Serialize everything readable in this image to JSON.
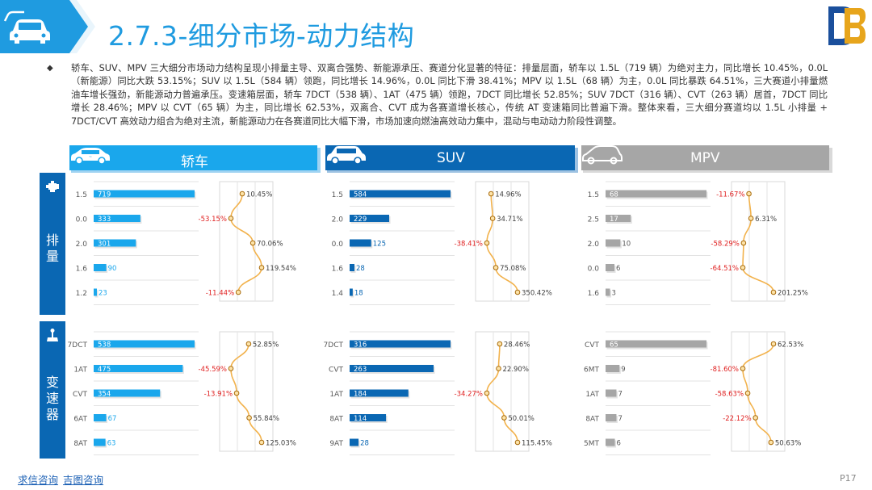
{
  "header": {
    "title": "2.7.3-细分市场-动力结构",
    "icon": "car-icon"
  },
  "summary": {
    "bullet": "◆",
    "text": "轿车、SUV、MPV 三大细分市场动力结构呈现小排量主导、双离合强势、新能源承压、赛道分化显著的特征：排量层面，轿车以 1.5L（719 辆）为绝对主力，同比增长 10.45%，0.0L（新能源）同比大跌 53.15%；SUV 以 1.5L（584 辆）领跑，同比增长 14.96%，0.0L 同比下滑 38.41%；MPV 以 1.5L（68 辆）为主，0.0L 同比暴跌 64.51%，三大赛道小排量燃油车增长强劲，新能源动力普遍承压。变速箱层面，轿车 7DCT（538 辆）、1AT（475 辆）领跑，7DCT 同比增长 52.85%；SUV 7DCT（316 辆）、CVT（263 辆）居首，7DCT 同比增长 28.46%；MPV 以 CVT（65 辆）为主，同比增长 62.53%，双离合、CVT 成为各赛道增长核心，传统 AT 变速箱同比普遍下滑。整体来看，三大细分赛道均以 1.5L 小排量 + 7DCT/CVT 高效动力组合为绝对主流，新能源动力在各赛道同比大幅下滑，市场加速向燃油高效动力集中，混动与电动动力阶段性调整。"
  },
  "columns": [
    {
      "label": "轿车",
      "color": "#1aa7ec",
      "icon": "sedan-icon"
    },
    {
      "label": "SUV",
      "color": "#0a67b3",
      "icon": "suv-icon"
    },
    {
      "label": "MPV",
      "color": "#a6a6a6",
      "icon": "mpv-icon"
    }
  ],
  "rows": [
    {
      "label": "排量",
      "icon": "engine-icon"
    },
    {
      "label": "变速器",
      "icon": "gear-shift-icon"
    }
  ],
  "footer": {
    "link1": "求信咨询",
    "link2": "吉图咨询",
    "page": "P17"
  },
  "chart_data": [
    {
      "type": "bar+line",
      "segment": "轿车",
      "dimension": "排量",
      "categories": [
        "1.5",
        "0.0",
        "2.0",
        "1.6",
        "1.2"
      ],
      "values": [
        719,
        333,
        301,
        90,
        23
      ],
      "growth": [
        10.45,
        -53.15,
        70.06,
        119.54,
        -11.44
      ],
      "growth_labels": [
        "10.45%",
        "-53.15%",
        "70.06%",
        "119.54%",
        "-11.44%"
      ],
      "bar_color": "#1aa7ec"
    },
    {
      "type": "bar+line",
      "segment": "SUV",
      "dimension": "排量",
      "categories": [
        "1.5",
        "2.0",
        "0.0",
        "1.6",
        "1.4"
      ],
      "values": [
        584,
        229,
        125,
        28,
        18
      ],
      "growth": [
        14.96,
        34.71,
        -38.41,
        75.08,
        350.42
      ],
      "growth_labels": [
        "14.96%",
        "34.71%",
        "-38.41%",
        "75.08%",
        "350.42%"
      ],
      "bar_color": "#0a67b3"
    },
    {
      "type": "bar+line",
      "segment": "MPV",
      "dimension": "排量",
      "categories": [
        "1.5",
        "2.5",
        "2.0",
        "0.0",
        "1.6"
      ],
      "values": [
        68,
        17,
        10,
        6,
        3
      ],
      "growth": [
        -11.67,
        6.31,
        -58.29,
        -64.51,
        201.25
      ],
      "growth_labels": [
        "-11.67%",
        "6.31%",
        "-58.29%",
        "-64.51%",
        "201.25%"
      ],
      "bar_color": "#a6a6a6"
    },
    {
      "type": "bar+line",
      "segment": "轿车",
      "dimension": "变速器",
      "categories": [
        "7DCT",
        "1AT",
        "CVT",
        "6AT",
        "8AT"
      ],
      "values": [
        538,
        475,
        354,
        67,
        63
      ],
      "growth": [
        52.85,
        -45.59,
        -13.91,
        55.84,
        125.03
      ],
      "growth_labels": [
        "52.85%",
        "-45.59%",
        "-13.91%",
        "55.84%",
        "125.03%"
      ],
      "bar_color": "#1aa7ec"
    },
    {
      "type": "bar+line",
      "segment": "SUV",
      "dimension": "变速器",
      "categories": [
        "7DCT",
        "CVT",
        "1AT",
        "8AT",
        "9AT"
      ],
      "values": [
        316,
        263,
        184,
        114,
        28
      ],
      "growth": [
        28.46,
        22.9,
        -34.27,
        50.01,
        115.45
      ],
      "growth_labels": [
        "28.46%",
        "22.90%",
        "-34.27%",
        "50.01%",
        "115.45%"
      ],
      "bar_color": "#0a67b3"
    },
    {
      "type": "bar+line",
      "segment": "MPV",
      "dimension": "变速器",
      "categories": [
        "CVT",
        "6MT",
        "1AT",
        "8AT",
        "5MT"
      ],
      "values": [
        65,
        9,
        7,
        7,
        6
      ],
      "growth": [
        62.53,
        -81.6,
        -58.63,
        -22.12,
        50.63
      ],
      "growth_labels": [
        "62.53%",
        "-81.60%",
        "-58.63%",
        "-22.12%",
        "50.63%"
      ],
      "bar_color": "#a6a6a6"
    }
  ]
}
